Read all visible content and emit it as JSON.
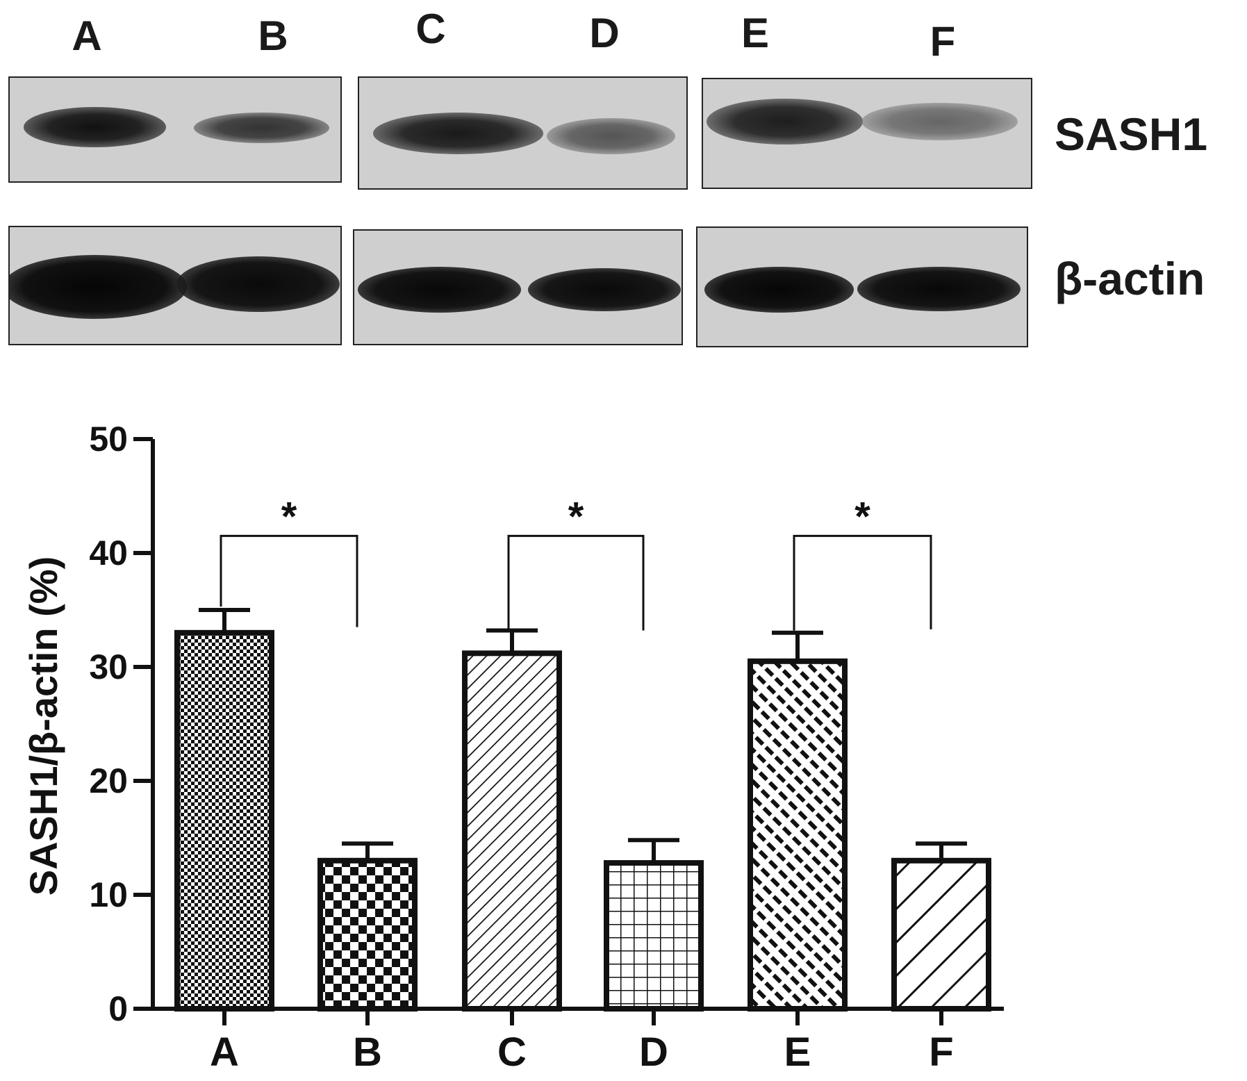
{
  "blot": {
    "lanes": [
      "A",
      "B",
      "C",
      "D",
      "E",
      "F"
    ],
    "rows": [
      "SASH1",
      "β-actin"
    ]
  },
  "chart_data": {
    "type": "bar",
    "categories": [
      "A",
      "B",
      "C",
      "D",
      "E",
      "F"
    ],
    "values": [
      33,
      13,
      31.2,
      12.8,
      30.5,
      13
    ],
    "errors": [
      2,
      1.5,
      2,
      2,
      2.5,
      1.5
    ],
    "title": "",
    "xlabel": "",
    "ylabel": "SASH1/β-actin (%)",
    "ylim": [
      0,
      50
    ],
    "yticks": [
      0,
      10,
      20,
      30,
      40,
      50
    ],
    "grid": false,
    "patterns": [
      "fine-checker",
      "checker",
      "diagonal-thin",
      "grid",
      "diagonal-dashed",
      "diagonal-wide"
    ],
    "significance": [
      {
        "from": "A",
        "to": "B",
        "label": "*"
      },
      {
        "from": "C",
        "to": "D",
        "label": "*"
      },
      {
        "from": "E",
        "to": "F",
        "label": "*"
      }
    ]
  }
}
